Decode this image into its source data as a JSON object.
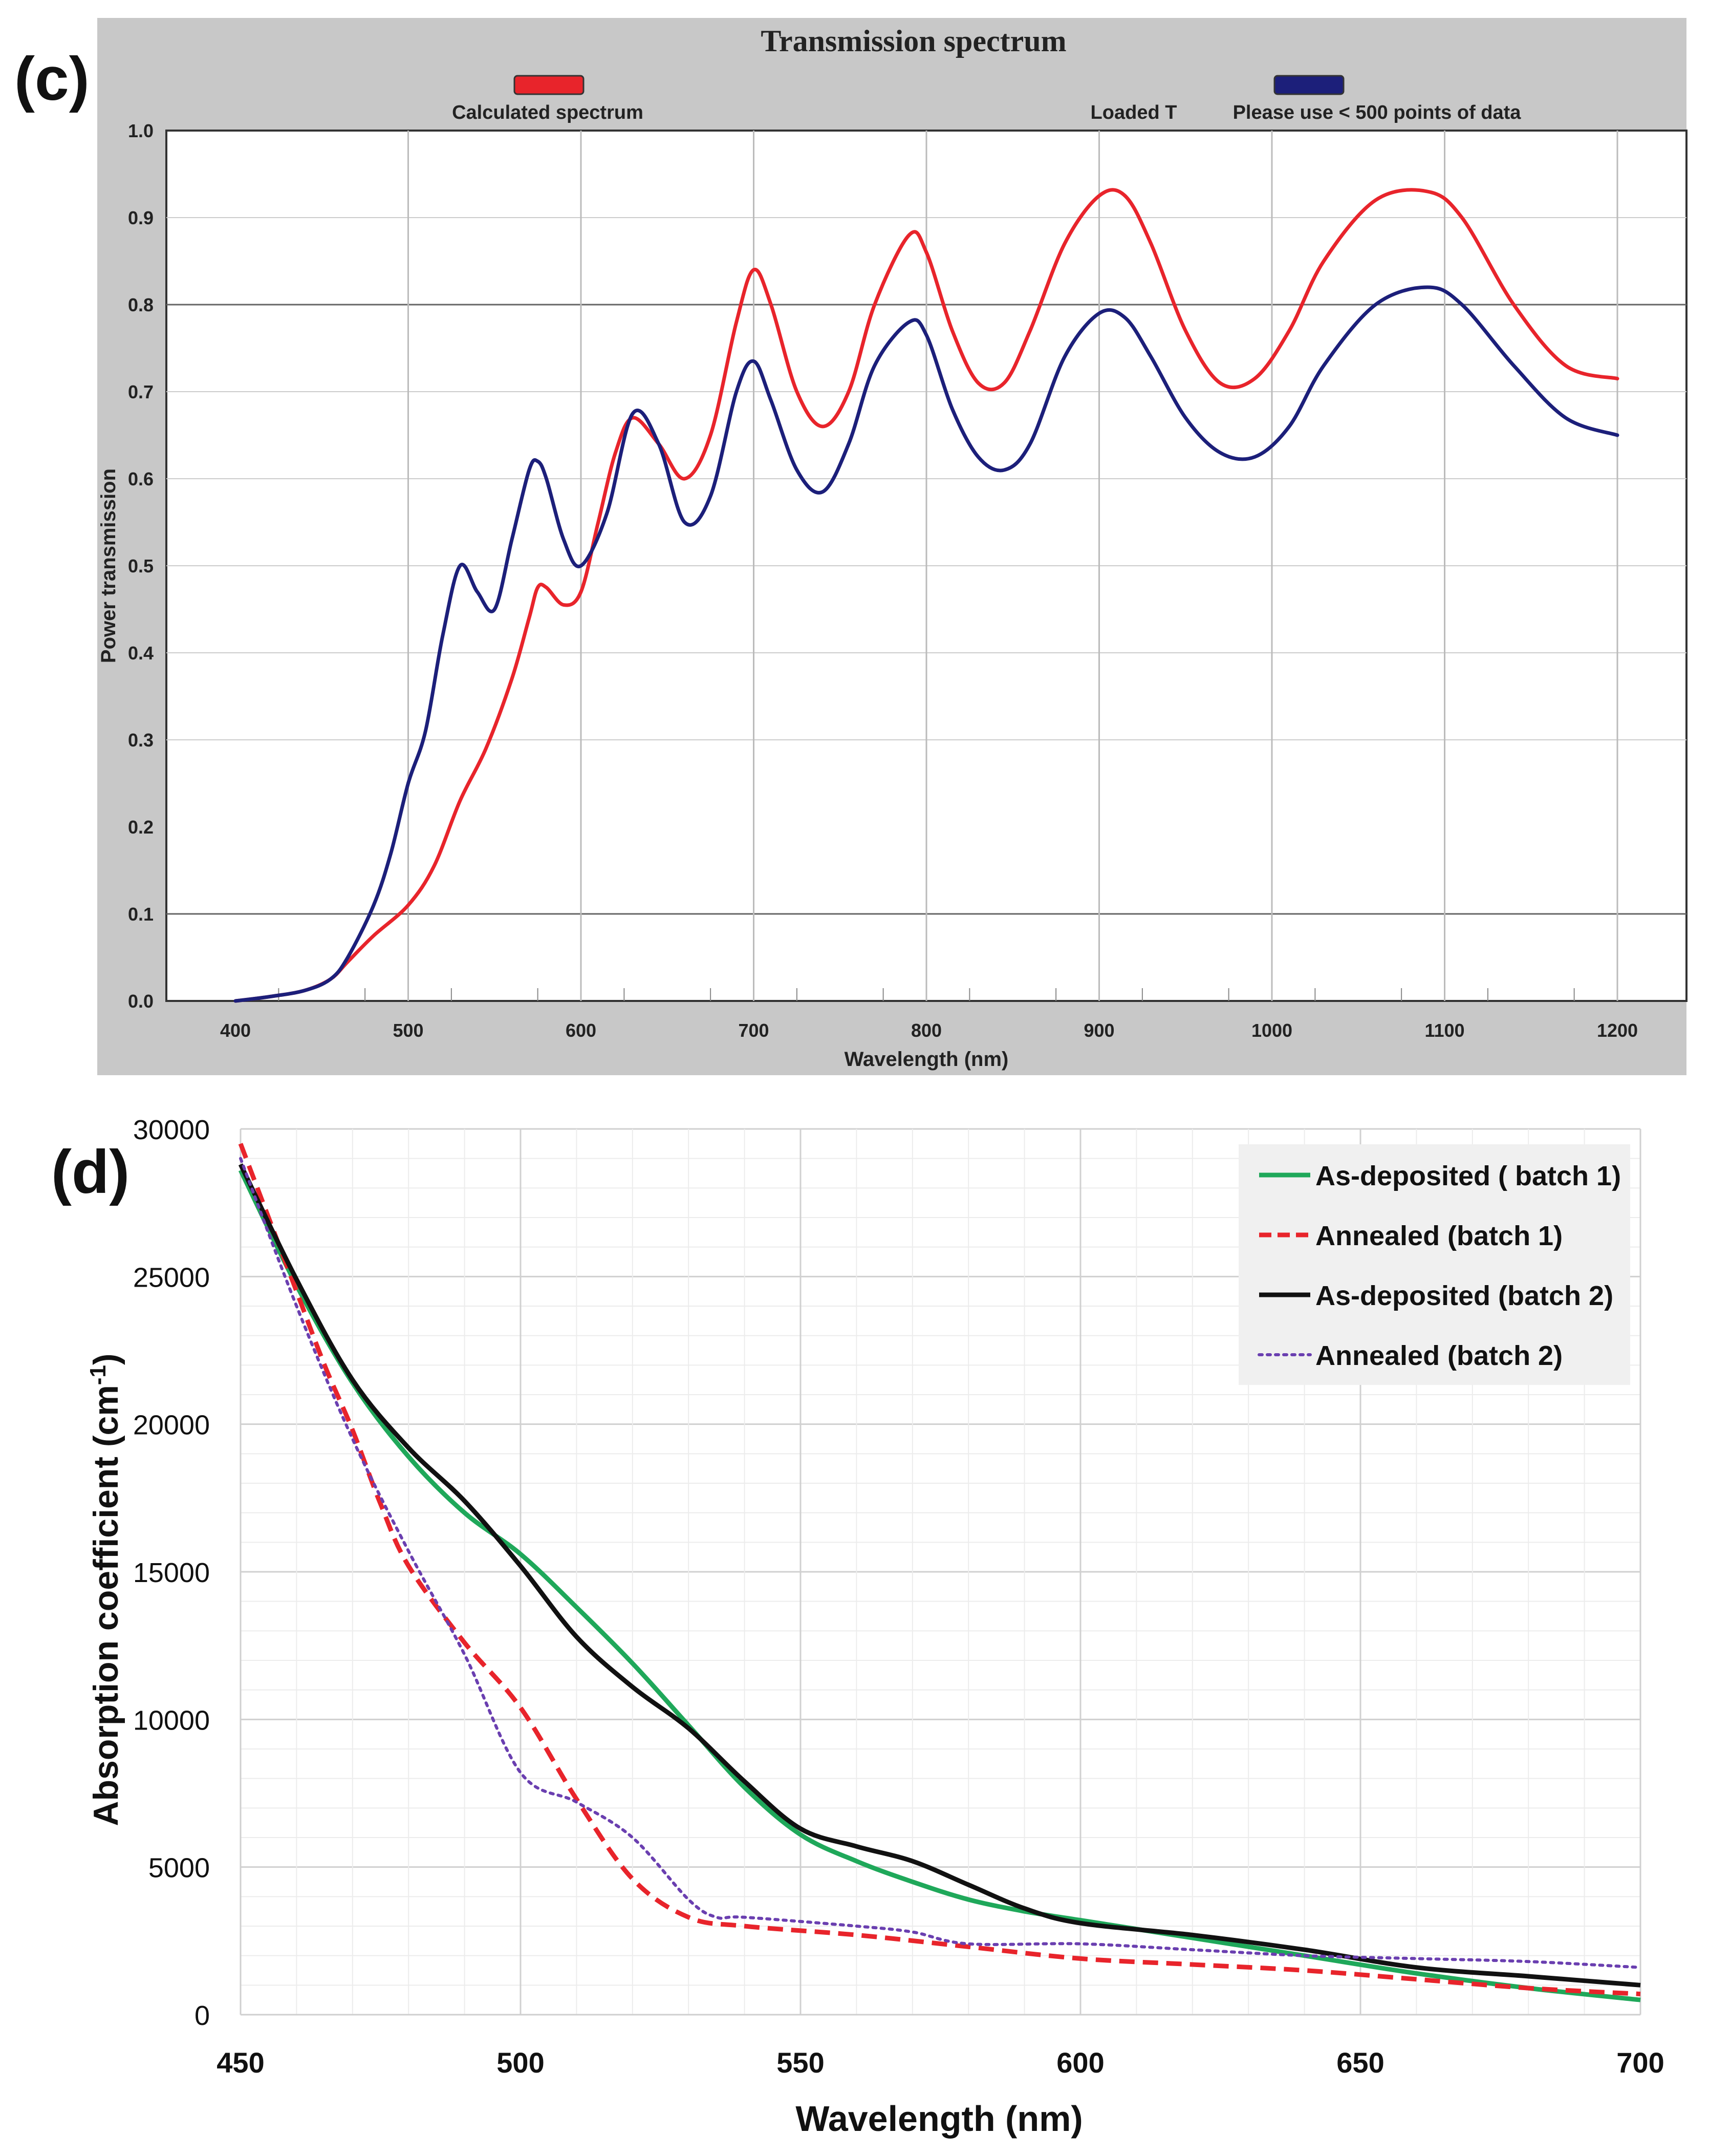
{
  "chart_data": [
    {
      "panel_label": "(c)",
      "type": "line",
      "title": "Transmission spectrum",
      "xlabel": "Wavelength (nm)",
      "ylabel": "Power transmission",
      "xlim": [
        400,
        1200
      ],
      "ylim": [
        0,
        1
      ],
      "xticks": [
        "400",
        "500",
        "600",
        "700",
        "800",
        "900",
        "1000",
        "1100",
        "1200"
      ],
      "yticks": [
        "0.0",
        "0.1",
        "0.2",
        "0.3",
        "0.4",
        "0.5",
        "0.6",
        "0.7",
        "0.8",
        "0.9",
        "1.0"
      ],
      "legend": {
        "calculated": "Calculated spectrum",
        "loaded": "Loaded T",
        "note": "Please use < 500 points of data"
      },
      "colors": {
        "calculated": "#e8242b",
        "loaded": "#1c1f7a",
        "frame": "#c8c8c8"
      },
      "series": [
        {
          "name": "Calculated spectrum",
          "x": [
            400,
            420,
            440,
            455,
            465,
            480,
            500,
            515,
            530,
            545,
            560,
            570,
            575,
            580,
            590,
            600,
            610,
            620,
            630,
            645,
            660,
            675,
            690,
            700,
            710,
            725,
            740,
            755,
            770,
            790,
            800,
            815,
            830,
            845,
            860,
            880,
            900,
            915,
            930,
            950,
            970,
            990,
            1010,
            1030,
            1060,
            1090,
            1110,
            1140,
            1170,
            1200
          ],
          "values": [
            0.0,
            0.005,
            0.012,
            0.025,
            0.045,
            0.075,
            0.11,
            0.155,
            0.23,
            0.29,
            0.37,
            0.44,
            0.475,
            0.475,
            0.455,
            0.47,
            0.55,
            0.63,
            0.67,
            0.64,
            0.6,
            0.65,
            0.78,
            0.84,
            0.8,
            0.7,
            0.66,
            0.7,
            0.8,
            0.88,
            0.86,
            0.77,
            0.71,
            0.71,
            0.77,
            0.87,
            0.925,
            0.925,
            0.87,
            0.77,
            0.71,
            0.715,
            0.77,
            0.85,
            0.92,
            0.93,
            0.9,
            0.8,
            0.73,
            0.715
          ]
        },
        {
          "name": "Loaded T",
          "x": [
            400,
            420,
            440,
            455,
            465,
            480,
            490,
            500,
            510,
            520,
            530,
            540,
            550,
            560,
            570,
            575,
            580,
            590,
            600,
            615,
            630,
            645,
            660,
            675,
            690,
            700,
            710,
            725,
            740,
            755,
            770,
            790,
            800,
            815,
            830,
            845,
            860,
            880,
            900,
            915,
            930,
            950,
            970,
            990,
            1010,
            1030,
            1060,
            1090,
            1110,
            1140,
            1170,
            1200
          ],
          "values": [
            0.0,
            0.005,
            0.012,
            0.025,
            0.05,
            0.11,
            0.17,
            0.25,
            0.31,
            0.42,
            0.5,
            0.47,
            0.45,
            0.53,
            0.61,
            0.62,
            0.6,
            0.53,
            0.5,
            0.56,
            0.675,
            0.64,
            0.55,
            0.58,
            0.7,
            0.735,
            0.69,
            0.61,
            0.585,
            0.64,
            0.73,
            0.78,
            0.765,
            0.68,
            0.625,
            0.61,
            0.64,
            0.74,
            0.79,
            0.785,
            0.74,
            0.67,
            0.63,
            0.625,
            0.66,
            0.73,
            0.8,
            0.82,
            0.8,
            0.73,
            0.67,
            0.65
          ]
        }
      ]
    },
    {
      "panel_label": "(d)",
      "type": "line",
      "xlabel": "Wavelength (nm)",
      "ylabel": "Absorption coefficient (cm-1)",
      "ylabel_main": "Absorption coefficient (cm",
      "ylabel_sup": "-1",
      "ylabel_end": ")",
      "xlim": [
        450,
        700
      ],
      "ylim": [
        0,
        30000
      ],
      "xticks": [
        "450",
        "500",
        "550",
        "600",
        "650",
        "700"
      ],
      "yticks": [
        "0",
        "5000",
        "10000",
        "15000",
        "20000",
        "25000",
        "30000"
      ],
      "legend_position": "top-right",
      "series": [
        {
          "name": "As-deposited ( batch 1)",
          "color": "#1fa85a",
          "style": "solid",
          "x": [
            450,
            460,
            470,
            480,
            490,
            500,
            510,
            520,
            530,
            540,
            550,
            560,
            570,
            580,
            590,
            600,
            620,
            640,
            660,
            680,
            700
          ],
          "values": [
            28600,
            24700,
            21400,
            18900,
            17000,
            15600,
            13800,
            11900,
            9800,
            7700,
            6100,
            5200,
            4500,
            3900,
            3500,
            3200,
            2600,
            2000,
            1400,
            900,
            500
          ]
        },
        {
          "name": "Annealed (batch 1)",
          "color": "#e8242b",
          "style": "dashed",
          "x": [
            450,
            455,
            460,
            465,
            470,
            475,
            480,
            490,
            500,
            510,
            520,
            530,
            540,
            560,
            580,
            600,
            620,
            640,
            660,
            680,
            700
          ],
          "values": [
            29500,
            27000,
            24500,
            22000,
            19800,
            17300,
            15200,
            12600,
            10400,
            7300,
            4600,
            3300,
            3000,
            2700,
            2300,
            1900,
            1700,
            1500,
            1200,
            900,
            700
          ]
        },
        {
          "name": "As-deposited (batch 2)",
          "color": "#111111",
          "style": "solid",
          "x": [
            450,
            460,
            470,
            480,
            490,
            500,
            510,
            520,
            530,
            540,
            550,
            560,
            570,
            580,
            590,
            600,
            620,
            640,
            660,
            680,
            700
          ],
          "values": [
            28800,
            24900,
            21500,
            19200,
            17400,
            15200,
            12800,
            11100,
            9700,
            7900,
            6300,
            5700,
            5200,
            4400,
            3600,
            3100,
            2700,
            2200,
            1600,
            1300,
            1000
          ]
        },
        {
          "name": "Annealed (batch 2)",
          "color": "#6a3fb0",
          "style": "dotted",
          "x": [
            450,
            460,
            470,
            480,
            490,
            500,
            510,
            520,
            530,
            535,
            540,
            560,
            570,
            580,
            600,
            620,
            640,
            660,
            680,
            700
          ],
          "values": [
            29000,
            24000,
            19500,
            15700,
            12200,
            8200,
            7200,
            6000,
            3900,
            3300,
            3300,
            3000,
            2800,
            2400,
            2400,
            2200,
            2000,
            1900,
            1800,
            1600
          ]
        }
      ]
    }
  ]
}
